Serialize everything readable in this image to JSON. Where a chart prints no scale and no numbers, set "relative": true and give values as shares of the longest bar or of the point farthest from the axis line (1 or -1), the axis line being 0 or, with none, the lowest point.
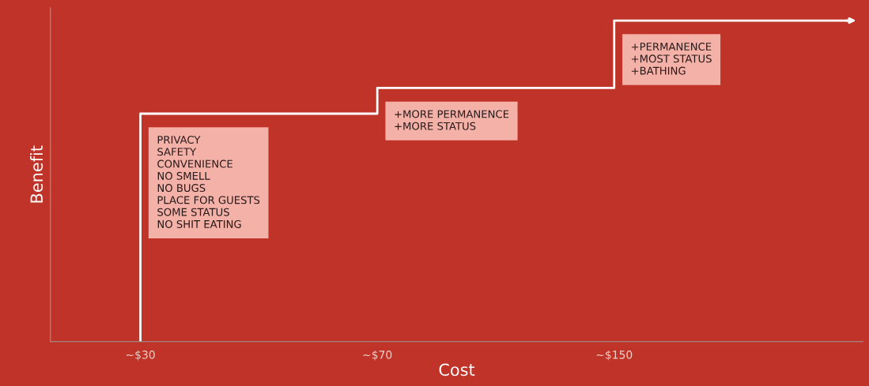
{
  "chart_data": {
    "type": "step",
    "relative": true,
    "xlabel": "Cost",
    "ylabel": "Benefit",
    "categories": [
      "~$30",
      "~$70",
      "~$150",
      null
    ],
    "series": [
      {
        "color": "#ffffff",
        "values": [
          0,
          0.71,
          0.79,
          1
        ]
      }
    ],
    "annotations": [
      {
        "text": "PRIVACY\nSAFETY\nCONVENIENCE\nNO SMELL\nNO BUGS\nPLACE FOR GUESTS\nSOME STATUS\nNO SHIT EATING",
        "x": "~$30",
        "y": 0.71
      },
      {
        "text": "+MORE PERMANENCE\n+MORE STATUS",
        "x": "~$70",
        "y": 0.79
      },
      {
        "text": "+PERMANENCE\n+MOST STATUS\n+BATHING",
        "x": "~$150",
        "y": 1
      }
    ],
    "grid": false,
    "legend": false
  }
}
